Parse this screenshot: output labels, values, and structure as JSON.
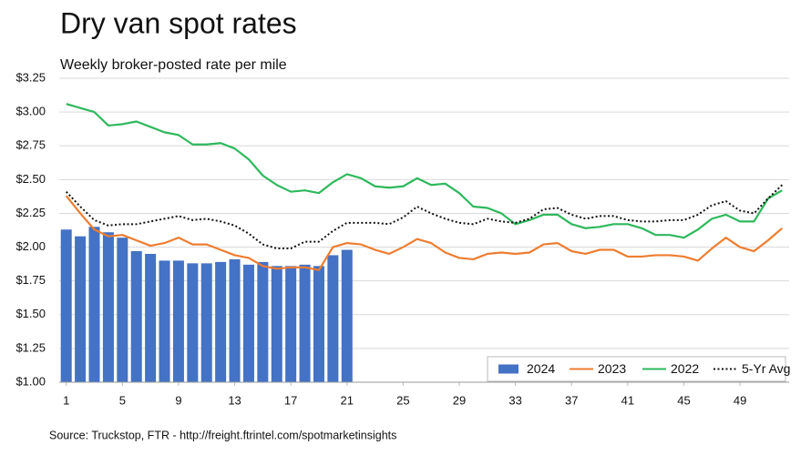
{
  "chart_data": {
    "type": "combo",
    "title": "Dry van spot rates",
    "subtitle": "Weekly broker-posted rate per mile",
    "source": "Source: Truckstop, FTR - http://freight.ftrintel.com/spotmarketinsights",
    "x": [
      1,
      2,
      3,
      4,
      5,
      6,
      7,
      8,
      9,
      10,
      11,
      12,
      13,
      14,
      15,
      16,
      17,
      18,
      19,
      20,
      21,
      22,
      23,
      24,
      25,
      26,
      27,
      28,
      29,
      30,
      31,
      32,
      33,
      34,
      35,
      36,
      37,
      38,
      39,
      40,
      41,
      42,
      43,
      44,
      45,
      46,
      47,
      48,
      49,
      50,
      51,
      52
    ],
    "xlim": [
      0.5,
      52.5
    ],
    "xticks": [
      1,
      5,
      9,
      13,
      17,
      21,
      25,
      29,
      33,
      37,
      41,
      45,
      49
    ],
    "ylim": [
      1.0,
      3.25
    ],
    "yticks": [
      {
        "value": 1.0,
        "label": "$1.00"
      },
      {
        "value": 1.25,
        "label": "$1.25"
      },
      {
        "value": 1.5,
        "label": "$1.50"
      },
      {
        "value": 1.75,
        "label": "$1.75"
      },
      {
        "value": 2.0,
        "label": "$2.00"
      },
      {
        "value": 2.25,
        "label": "$2.25"
      },
      {
        "value": 2.5,
        "label": "$2.50"
      },
      {
        "value": 2.75,
        "label": "$2.75"
      },
      {
        "value": 3.0,
        "label": "$3.00"
      },
      {
        "value": 3.25,
        "label": "$3.25"
      }
    ],
    "grid": true,
    "legend": "bottom-right",
    "series": [
      {
        "name": "2024",
        "type": "bar",
        "color": "#4472c4",
        "values": [
          2.13,
          2.08,
          2.15,
          2.11,
          2.07,
          1.97,
          1.95,
          1.9,
          1.9,
          1.88,
          1.88,
          1.89,
          1.91,
          1.87,
          1.89,
          1.86,
          1.86,
          1.87,
          1.86,
          1.94,
          1.98,
          null,
          null,
          null,
          null,
          null,
          null,
          null,
          null,
          null,
          null,
          null,
          null,
          null,
          null,
          null,
          null,
          null,
          null,
          null,
          null,
          null,
          null,
          null,
          null,
          null,
          null,
          null,
          null,
          null,
          null,
          null
        ]
      },
      {
        "name": "2023",
        "type": "line",
        "color": "#ed7d31",
        "values": [
          2.38,
          2.25,
          2.13,
          2.08,
          2.09,
          2.05,
          2.01,
          2.03,
          2.07,
          2.02,
          2.02,
          1.98,
          1.94,
          1.92,
          1.86,
          1.84,
          1.85,
          1.85,
          1.83,
          2.0,
          2.03,
          2.02,
          1.98,
          1.95,
          2.0,
          2.06,
          2.03,
          1.96,
          1.92,
          1.91,
          1.95,
          1.96,
          1.95,
          1.96,
          2.02,
          2.03,
          1.97,
          1.95,
          1.98,
          1.98,
          1.93,
          1.93,
          1.94,
          1.94,
          1.93,
          1.9,
          1.99,
          2.07,
          2.0,
          1.97,
          2.05,
          2.14
        ]
      },
      {
        "name": "2022",
        "type": "line",
        "color": "#2eb85c",
        "values": [
          3.06,
          3.03,
          3.0,
          2.9,
          2.91,
          2.93,
          2.89,
          2.85,
          2.83,
          2.76,
          2.76,
          2.77,
          2.73,
          2.65,
          2.53,
          2.46,
          2.41,
          2.42,
          2.4,
          2.48,
          2.54,
          2.51,
          2.45,
          2.44,
          2.45,
          2.51,
          2.46,
          2.47,
          2.4,
          2.3,
          2.29,
          2.25,
          2.17,
          2.2,
          2.24,
          2.24,
          2.17,
          2.14,
          2.15,
          2.17,
          2.17,
          2.14,
          2.09,
          2.09,
          2.07,
          2.13,
          2.21,
          2.24,
          2.19,
          2.19,
          2.36,
          2.42
        ]
      },
      {
        "name": "5-Yr Avg",
        "type": "line",
        "dash": "dotted",
        "color": "#111111",
        "values": [
          2.41,
          2.3,
          2.2,
          2.16,
          2.17,
          2.17,
          2.19,
          2.21,
          2.23,
          2.2,
          2.21,
          2.19,
          2.16,
          2.1,
          2.02,
          1.99,
          1.99,
          2.04,
          2.04,
          2.12,
          2.18,
          2.18,
          2.18,
          2.17,
          2.22,
          2.3,
          2.25,
          2.21,
          2.18,
          2.17,
          2.21,
          2.19,
          2.18,
          2.21,
          2.28,
          2.29,
          2.24,
          2.21,
          2.23,
          2.23,
          2.2,
          2.19,
          2.19,
          2.2,
          2.2,
          2.24,
          2.31,
          2.34,
          2.27,
          2.25,
          2.36,
          2.46
        ]
      }
    ]
  }
}
